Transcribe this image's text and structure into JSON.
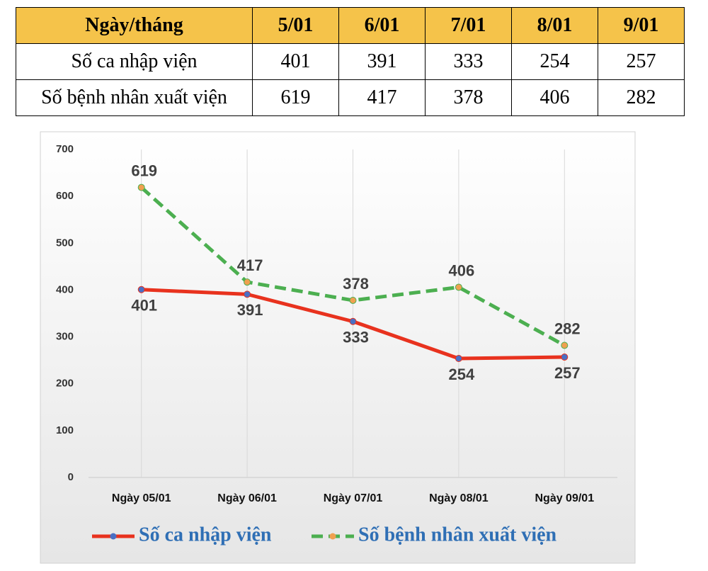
{
  "table": {
    "header": [
      "Ngày/tháng",
      "5/01",
      "6/01",
      "7/01",
      "8/01",
      "9/01"
    ],
    "rows": [
      [
        "Số ca nhập viện",
        401,
        391,
        333,
        254,
        257
      ],
      [
        "Số bệnh nhân xuất viện",
        619,
        417,
        378,
        406,
        282
      ]
    ]
  },
  "chart_data": {
    "type": "line",
    "categories": [
      "Ngày 05/01",
      "Ngày 06/01",
      "Ngày 07/01",
      "Ngày 08/01",
      "Ngày 09/01"
    ],
    "series": [
      {
        "name": "Số ca nhập viện",
        "color": "#e8321e",
        "marker_color": "#4a6fc4",
        "line_style": "solid",
        "values": [
          401,
          391,
          333,
          254,
          257
        ]
      },
      {
        "name": "Số bệnh nhân xuất viện",
        "color": "#4caf50",
        "marker_color": "#f0a050",
        "line_style": "dashed",
        "values": [
          619,
          417,
          378,
          406,
          282
        ]
      }
    ],
    "ylim": [
      0,
      700
    ],
    "yticks": [
      0,
      100,
      200,
      300,
      400,
      500,
      600,
      700
    ],
    "grid": "vertical",
    "legend": "bottom"
  }
}
